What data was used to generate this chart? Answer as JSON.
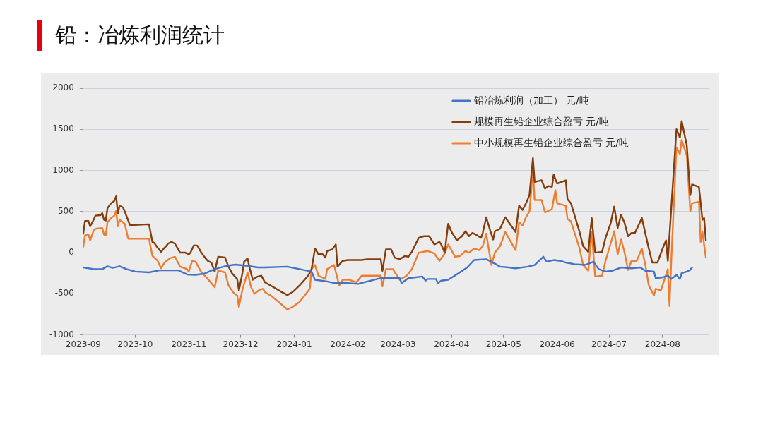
{
  "chart_data": {
    "type": "line",
    "title": "铅：冶炼利润统计",
    "xlim": [
      "2023-09-01",
      "2024-08-28"
    ],
    "xticks": [
      "2023-09",
      "2023-10",
      "2023-11",
      "2023-12",
      "2024-01",
      "2024-02",
      "2024-03",
      "2024-04",
      "2024-05",
      "2024-06",
      "2024-07",
      "2024-08"
    ],
    "ylim": [
      -1000,
      2000
    ],
    "yticks": [
      -1000,
      -500,
      0,
      500,
      1000,
      1500,
      2000
    ],
    "grid": "y",
    "legend": "top right",
    "marker": "none",
    "series": [
      {
        "name": "铅冶炼利润（加工） 元/吨",
        "color": "#4472c4",
        "x": [
          "2023-09-01",
          "2023-09-07",
          "2023-09-12",
          "2023-09-15",
          "2023-09-18",
          "2023-09-22",
          "2023-09-26",
          "2023-10-01",
          "2023-10-09",
          "2023-10-15",
          "2023-10-26",
          "2023-10-31",
          "2023-11-05",
          "2023-11-10",
          "2023-11-16",
          "2023-11-23",
          "2023-11-28",
          "2023-12-05",
          "2023-12-11",
          "2023-12-15",
          "2023-12-28",
          "2024-01-11",
          "2024-01-13",
          "2024-01-20",
          "2024-01-24",
          "2024-02-01",
          "2024-02-07",
          "2024-02-20",
          "2024-03-02",
          "2024-03-03",
          "2024-03-07",
          "2024-03-15",
          "2024-03-17",
          "2024-03-18",
          "2024-03-23",
          "2024-03-24",
          "2024-03-26",
          "2024-03-30",
          "2024-04-05",
          "2024-04-10",
          "2024-04-14",
          "2024-04-21",
          "2024-04-24",
          "2024-04-29",
          "2024-05-04",
          "2024-05-08",
          "2024-05-15",
          "2024-05-19",
          "2024-05-21",
          "2024-05-24",
          "2024-05-26",
          "2024-05-30",
          "2024-06-03",
          "2024-06-06",
          "2024-06-11",
          "2024-06-17",
          "2024-06-22",
          "2024-06-25",
          "2024-06-29",
          "2024-07-03",
          "2024-07-08",
          "2024-07-14",
          "2024-07-19",
          "2024-07-22",
          "2024-07-27",
          "2024-07-28",
          "2024-08-01",
          "2024-08-04",
          "2024-08-06",
          "2024-08-09",
          "2024-08-11",
          "2024-08-12",
          "2024-08-15",
          "2024-08-17",
          "2024-08-18"
        ],
        "values": [
          -180,
          -200,
          -200,
          -165,
          -185,
          -165,
          -200,
          -230,
          -240,
          -215,
          -215,
          -265,
          -270,
          -255,
          -200,
          -160,
          -145,
          -160,
          -180,
          -180,
          -170,
          -230,
          -330,
          -350,
          -370,
          -370,
          -380,
          -310,
          -310,
          -370,
          -310,
          -290,
          -340,
          -320,
          -320,
          -370,
          -340,
          -330,
          -250,
          -180,
          -90,
          -80,
          -110,
          -170,
          -180,
          -190,
          -170,
          -150,
          -110,
          -50,
          -110,
          -90,
          -100,
          -120,
          -140,
          -150,
          -110,
          -200,
          -230,
          -220,
          -180,
          -190,
          -180,
          -220,
          -230,
          -310,
          -300,
          -280,
          -320,
          -270,
          -320,
          -250,
          -230,
          -210,
          -180
        ]
      },
      {
        "name": "规模再生铅企业综合盈亏 元/吨",
        "color": "#843c0c",
        "x": [
          "2023-09-01",
          "2023-09-02",
          "2023-09-04",
          "2023-09-05",
          "2023-09-07",
          "2023-09-08",
          "2023-09-11",
          "2023-09-12",
          "2023-09-13",
          "2023-09-14",
          "2023-09-15",
          "2023-09-17",
          "2023-09-19",
          "2023-09-20",
          "2023-09-21",
          "2023-09-22",
          "2023-09-24",
          "2023-09-25",
          "2023-09-28",
          "2023-10-09",
          "2023-10-11",
          "2023-10-12",
          "2023-10-14",
          "2023-10-16",
          "2023-10-18",
          "2023-10-19",
          "2023-10-20",
          "2023-10-22",
          "2023-10-24",
          "2023-10-27",
          "2023-10-30",
          "2023-11-01",
          "2023-11-02",
          "2023-11-04",
          "2023-11-06",
          "2023-11-08",
          "2023-11-10",
          "2023-11-12",
          "2023-11-14",
          "2023-11-16",
          "2023-11-18",
          "2023-11-22",
          "2023-11-24",
          "2023-11-26",
          "2023-11-29",
          "2023-11-30",
          "2023-12-02",
          "2023-12-03",
          "2023-12-05",
          "2023-12-06",
          "2023-12-08",
          "2023-12-10",
          "2023-12-11",
          "2023-12-13",
          "2023-12-15",
          "2023-12-20",
          "2023-12-24",
          "2023-12-28",
          "2023-12-31",
          "2024-01-04",
          "2024-01-07",
          "2024-01-09",
          "2024-01-11",
          "2024-01-13",
          "2024-01-15",
          "2024-01-17",
          "2024-01-19",
          "2024-01-20",
          "2024-01-23",
          "2024-01-25",
          "2024-01-26",
          "2024-01-29",
          "2024-02-01",
          "2024-02-09",
          "2024-02-12",
          "2024-02-20",
          "2024-02-21",
          "2024-02-23",
          "2024-02-26",
          "2024-02-28",
          "2024-03-02",
          "2024-03-05",
          "2024-03-07",
          "2024-03-09",
          "2024-03-13",
          "2024-03-16",
          "2024-03-19",
          "2024-03-22",
          "2024-03-25",
          "2024-03-26",
          "2024-03-28",
          "2024-03-30",
          "2024-04-01",
          "2024-04-04",
          "2024-04-07",
          "2024-04-09",
          "2024-04-11",
          "2024-04-13",
          "2024-04-15",
          "2024-04-18",
          "2024-04-19",
          "2024-04-21",
          "2024-04-23",
          "2024-04-25",
          "2024-04-26",
          "2024-04-29",
          "2024-05-02",
          "2024-05-08",
          "2024-05-10",
          "2024-05-12",
          "2024-05-14",
          "2024-05-16",
          "2024-05-18",
          "2024-05-19",
          "2024-05-23",
          "2024-05-25",
          "2024-05-27",
          "2024-05-29",
          "2024-05-30",
          "2024-06-01",
          "2024-06-06",
          "2024-06-07",
          "2024-06-09",
          "2024-06-14",
          "2024-06-16",
          "2024-06-19",
          "2024-06-21",
          "2024-06-23",
          "2024-06-27",
          "2024-06-29",
          "2024-07-02",
          "2024-07-04",
          "2024-07-06",
          "2024-07-08",
          "2024-07-10",
          "2024-07-12",
          "2024-07-14",
          "2024-07-16",
          "2024-07-20",
          "2024-07-24",
          "2024-07-26",
          "2024-07-29",
          "2024-08-01",
          "2024-08-03",
          "2024-08-04",
          "2024-08-09",
          "2024-08-11",
          "2024-08-12",
          "2024-08-15",
          "2024-08-17",
          "2024-08-18",
          "2024-08-22",
          "2024-08-24",
          "2024-08-25",
          "2024-08-26"
        ],
        "values": [
          230,
          385,
          385,
          320,
          400,
          450,
          455,
          480,
          400,
          390,
          540,
          600,
          630,
          685,
          480,
          570,
          550,
          500,
          335,
          345,
          130,
          120,
          60,
          10,
          60,
          80,
          110,
          130,
          110,
          0,
          0,
          -20,
          0,
          90,
          85,
          10,
          -50,
          -100,
          -120,
          -230,
          -50,
          -60,
          -170,
          -250,
          -320,
          -460,
          -250,
          -110,
          -70,
          -170,
          -330,
          -300,
          -290,
          -280,
          -360,
          -420,
          -470,
          -515,
          -480,
          -400,
          -330,
          -280,
          -200,
          50,
          -20,
          -10,
          -60,
          20,
          40,
          100,
          -170,
          -100,
          -90,
          -90,
          -80,
          -80,
          -220,
          40,
          40,
          -60,
          -80,
          -40,
          -50,
          10,
          180,
          200,
          200,
          100,
          130,
          100,
          0,
          350,
          250,
          150,
          200,
          260,
          200,
          240,
          220,
          180,
          240,
          430,
          290,
          160,
          260,
          290,
          430,
          250,
          570,
          520,
          600,
          700,
          1150,
          860,
          880,
          780,
          810,
          800,
          950,
          840,
          880,
          650,
          600,
          250,
          80,
          10,
          420,
          0,
          10,
          180,
          360,
          560,
          300,
          460,
          360,
          200,
          240,
          240,
          420,
          50,
          -120,
          -120,
          50,
          150,
          -100,
          1500,
          1400,
          1600,
          1300,
          700,
          830,
          800,
          400,
          420,
          150
        ]
      },
      {
        "name": "中小规模再生铅企业综合盈亏 元/吨",
        "color": "#ed7d31",
        "x": [
          "2023-09-01",
          "2023-09-02",
          "2023-09-04",
          "2023-09-05",
          "2023-09-07",
          "2023-09-08",
          "2023-09-12",
          "2023-09-13",
          "2023-09-14",
          "2023-09-15",
          "2023-09-17",
          "2023-09-19",
          "2023-09-20",
          "2023-09-21",
          "2023-09-22",
          "2023-09-25",
          "2023-09-27",
          "2023-10-09",
          "2023-10-11",
          "2023-10-14",
          "2023-10-16",
          "2023-10-18",
          "2023-10-21",
          "2023-10-24",
          "2023-10-27",
          "2023-10-31",
          "2023-11-01",
          "2023-11-03",
          "2023-11-05",
          "2023-11-08",
          "2023-11-12",
          "2023-11-16",
          "2023-11-18",
          "2023-11-22",
          "2023-11-24",
          "2023-11-27",
          "2023-11-29",
          "2023-11-30",
          "2023-12-02",
          "2023-12-05",
          "2023-12-07",
          "2023-12-09",
          "2023-12-12",
          "2023-12-14",
          "2023-12-15",
          "2023-12-19",
          "2023-12-23",
          "2023-12-28",
          "2023-12-31",
          "2024-01-04",
          "2024-01-07",
          "2024-01-10",
          "2024-01-11",
          "2024-01-13",
          "2024-01-15",
          "2024-01-17",
          "2024-01-19",
          "2024-01-20",
          "2024-01-24",
          "2024-01-27",
          "2024-01-29",
          "2024-02-02",
          "2024-02-06",
          "2024-02-09",
          "2024-02-20",
          "2024-02-21",
          "2024-02-23",
          "2024-02-27",
          "2024-03-02",
          "2024-03-06",
          "2024-03-09",
          "2024-03-13",
          "2024-03-18",
          "2024-03-22",
          "2024-03-25",
          "2024-03-28",
          "2024-03-30",
          "2024-04-03",
          "2024-04-06",
          "2024-04-09",
          "2024-04-11",
          "2024-04-14",
          "2024-04-17",
          "2024-04-19",
          "2024-04-21",
          "2024-04-24",
          "2024-04-26",
          "2024-04-29",
          "2024-05-02",
          "2024-05-08",
          "2024-05-10",
          "2024-05-12",
          "2024-05-14",
          "2024-05-16",
          "2024-05-18",
          "2024-05-19",
          "2024-05-23",
          "2024-05-25",
          "2024-05-29",
          "2024-05-31",
          "2024-06-01",
          "2024-06-06",
          "2024-06-07",
          "2024-06-09",
          "2024-06-14",
          "2024-06-16",
          "2024-06-19",
          "2024-06-21",
          "2024-06-23",
          "2024-06-27",
          "2024-06-29",
          "2024-07-04",
          "2024-07-06",
          "2024-07-08",
          "2024-07-10",
          "2024-07-12",
          "2024-07-14",
          "2024-07-17",
          "2024-07-20",
          "2024-07-22",
          "2024-07-24",
          "2024-07-27",
          "2024-07-28",
          "2024-07-31",
          "2024-08-04",
          "2024-08-05",
          "2024-08-06",
          "2024-08-09",
          "2024-08-11",
          "2024-08-12",
          "2024-08-15",
          "2024-08-17",
          "2024-08-18",
          "2024-08-22",
          "2024-08-23",
          "2024-08-24",
          "2024-08-26"
        ],
        "values": [
          70,
          210,
          220,
          150,
          270,
          290,
          300,
          220,
          210,
          370,
          420,
          450,
          510,
          320,
          400,
          350,
          170,
          170,
          -40,
          -100,
          -190,
          -120,
          -70,
          -50,
          -170,
          -200,
          -230,
          -100,
          -110,
          -230,
          -320,
          -420,
          -220,
          -240,
          -400,
          -490,
          -520,
          -660,
          -450,
          -240,
          -420,
          -500,
          -450,
          -440,
          -480,
          -530,
          -600,
          -690,
          -660,
          -600,
          -520,
          -440,
          -200,
          -150,
          -280,
          -300,
          -320,
          -200,
          -150,
          -400,
          -330,
          -330,
          -360,
          -280,
          -280,
          -410,
          -200,
          -200,
          -330,
          -280,
          -200,
          0,
          20,
          -10,
          -100,
          -10,
          100,
          -50,
          -40,
          20,
          0,
          50,
          30,
          80,
          230,
          -150,
          0,
          80,
          250,
          30,
          370,
          330,
          430,
          500,
          1000,
          640,
          640,
          490,
          530,
          760,
          600,
          570,
          410,
          380,
          50,
          -150,
          -220,
          250,
          -290,
          -280,
          -100,
          260,
          -20,
          160,
          0,
          -210,
          -100,
          -100,
          50,
          -150,
          -400,
          -520,
          -440,
          -460,
          -200,
          -650,
          -100,
          1280,
          1200,
          1370,
          1180,
          500,
          600,
          620,
          130,
          250,
          -60
        ]
      }
    ]
  }
}
